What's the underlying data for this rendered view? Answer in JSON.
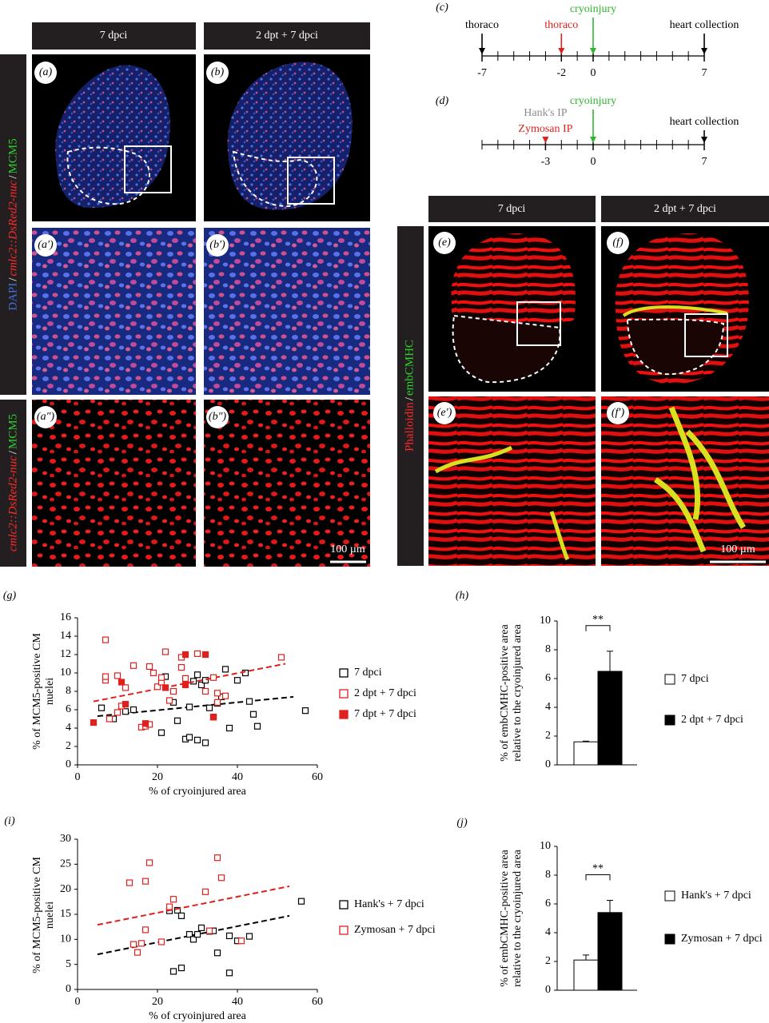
{
  "panel_labels": [
    "(a)",
    "(b)",
    "(a′)",
    "(b′)",
    "(a″)",
    "(b″)",
    "(e)",
    "(f)",
    "(e′)",
    "(f′)",
    "(c)",
    "(d)",
    "(g)",
    "(h)",
    "(i)",
    "(j)"
  ],
  "column_headers_left": [
    "7 dpci",
    "2 dpt + 7 dpci"
  ],
  "column_headers_right": [
    "7 dpci",
    "2 dpt + 7 dpci"
  ],
  "stain_labels": [
    {
      "parts": [
        {
          "text": "DAPI",
          "color": "#3d6fe0",
          "italic": false
        },
        {
          "text": "/",
          "color": "#ffffff",
          "italic": false
        },
        {
          "text": "cmlc2::DsRed2-nuc",
          "color": "#ff2a2a",
          "italic": true
        },
        {
          "text": "/",
          "color": "#ffffff",
          "italic": false
        },
        {
          "text": "MCM5",
          "color": "#2fd12f",
          "italic": false
        }
      ]
    },
    {
      "parts": [
        {
          "text": "cmlc2::DsRed2-nuc",
          "color": "#ff2a2a",
          "italic": true
        },
        {
          "text": "/",
          "color": "#ffffff",
          "italic": false
        },
        {
          "text": "MCM5",
          "color": "#2fd12f",
          "italic": false
        }
      ]
    },
    {
      "parts": [
        {
          "text": "Phalloidin",
          "color": "#ff2a2a",
          "italic": false
        },
        {
          "text": "/",
          "color": "#ffffff",
          "italic": false
        },
        {
          "text": "embCMHC",
          "color": "#2fd12f",
          "italic": false
        }
      ]
    }
  ],
  "scale_bars": [
    "100 µm",
    "100 µm"
  ],
  "timelines": [
    {
      "day_range": [
        -7,
        7
      ],
      "day_labels": [
        -7,
        -2,
        0,
        7
      ],
      "events": [
        {
          "label": "thoraco",
          "day": -7,
          "color": "#000000"
        },
        {
          "label": "thoraco",
          "day": -2,
          "color": "#e0201c"
        },
        {
          "label": "cryoinjury",
          "day": 0,
          "color": "#2fb52f"
        },
        {
          "label": "heart collection",
          "day": 7,
          "color": "#000000"
        }
      ]
    },
    {
      "day_range": [
        -7,
        7
      ],
      "day_labels": [
        -3,
        0,
        7
      ],
      "events": [
        {
          "label": "Hank's IP",
          "day": -3,
          "color": "#8c8c8c"
        },
        {
          "label": "Zymosan IP",
          "day": -3,
          "color": "#e0201c"
        },
        {
          "label": "cryoinjury",
          "day": 0,
          "color": "#2fb52f"
        },
        {
          "label": "heart collection",
          "day": 7,
          "color": "#000000"
        }
      ]
    }
  ],
  "chart_data": [
    {
      "type": "scatter",
      "xlabel": "% of cryoinjured area",
      "ylabel": "% of MCM5-positive CM nuelei",
      "xlim": [
        0,
        60
      ],
      "xticks": [
        0,
        20,
        40,
        60
      ],
      "ylim": [
        0,
        16
      ],
      "yticks": [
        0,
        2,
        4,
        6,
        8,
        10,
        12,
        14,
        16
      ],
      "series": [
        {
          "name": "7 dpci",
          "color": "#000000",
          "filled": false,
          "x": [
            6,
            9,
            12,
            14,
            21,
            22,
            24,
            25,
            27,
            28,
            28,
            29,
            30,
            30,
            31,
            32,
            32,
            33,
            34,
            35,
            36,
            37,
            38,
            40,
            42,
            43,
            44,
            45,
            57
          ],
          "values": [
            6.2,
            5,
            5.8,
            6,
            3.5,
            9.6,
            6.8,
            4.8,
            2.8,
            3,
            6.3,
            9.1,
            2.7,
            9.8,
            8.7,
            2.4,
            9.2,
            6.2,
            5.2,
            6.7,
            7.4,
            10.4,
            4,
            9.2,
            10,
            6.9,
            5.5,
            4.2,
            5.9
          ],
          "trendline": {
            "x": [
              5,
              54
            ],
            "values": [
              5.3,
              7.4
            ]
          }
        },
        {
          "name": "2 dpt + 7 dpci",
          "color": "#e0201c",
          "filled": false,
          "x": [
            7,
            7,
            7,
            8,
            10,
            10,
            11,
            12,
            14,
            16,
            17,
            18,
            18,
            19,
            20,
            21,
            21,
            22,
            23,
            24,
            26,
            26,
            27,
            30,
            32,
            34,
            35,
            35,
            37,
            51
          ],
          "values": [
            9.2,
            9.6,
            13.6,
            5,
            5.7,
            9.7,
            6.4,
            8.4,
            10.8,
            4.1,
            4.2,
            4.4,
            10.7,
            10,
            8.5,
            9,
            9.5,
            12.3,
            7,
            8,
            11.7,
            10.6,
            9.4,
            12.1,
            8,
            9.5,
            6.8,
            7.8,
            7.5,
            11.7
          ],
          "trendline": {
            "x": [
              4,
              52
            ],
            "values": [
              6.9,
              11
            ]
          }
        },
        {
          "name": "7 dpt + 7 dpci",
          "color": "#e0201c",
          "filled": true,
          "x": [
            4,
            11,
            12,
            17,
            22,
            27,
            27,
            32,
            34
          ],
          "values": [
            4.6,
            9,
            6.6,
            4.5,
            8.4,
            12,
            8.7,
            12,
            5.2
          ]
        }
      ]
    },
    {
      "type": "bar",
      "ylabel": "% of embCMHC-positive area relative to the cryoinjured area",
      "ylim": [
        0,
        10
      ],
      "yticks": [
        0,
        2,
        4,
        6,
        8,
        10
      ],
      "categories": [
        "7 dpci",
        "2 dpt + 7 dpci"
      ],
      "values": [
        1.6,
        6.5
      ],
      "errors": [
        0.05,
        1.4
      ],
      "colors": [
        "#ffffff",
        "#000000"
      ],
      "annotation": "**"
    },
    {
      "type": "scatter",
      "xlabel": "% of cryoinjured area",
      "ylabel": "% of MCM5-positive CM nuelei",
      "xlim": [
        0,
        60
      ],
      "xticks": [
        0,
        20,
        40,
        60
      ],
      "ylim": [
        0,
        30
      ],
      "yticks": [
        0,
        5,
        10,
        15,
        20,
        25,
        30
      ],
      "series": [
        {
          "name": "Hank's + 7 dpci",
          "color": "#000000",
          "filled": false,
          "x": [
            23,
            24,
            25,
            26,
            26,
            28,
            29,
            30,
            31,
            33,
            34,
            35,
            38,
            38,
            40,
            43,
            56
          ],
          "values": [
            15.7,
            3.6,
            15.8,
            4.3,
            14.7,
            11,
            10,
            11,
            12.3,
            11.6,
            11.7,
            7.3,
            3.3,
            10.7,
            9.7,
            10.6,
            17.6
          ],
          "trendline": {
            "x": [
              5,
              53
            ],
            "values": [
              7,
              14.7
            ]
          }
        },
        {
          "name": "Zymosan + 7 dpci",
          "color": "#e0201c",
          "filled": false,
          "x": [
            13,
            14,
            15,
            16,
            17,
            17,
            18,
            21,
            23,
            24,
            32,
            33,
            35,
            36,
            41
          ],
          "values": [
            21.3,
            9,
            7.4,
            9.2,
            11.9,
            21.6,
            25.3,
            9.5,
            16.5,
            18,
            19.5,
            11.7,
            26.3,
            22.3,
            9.7
          ],
          "trendline": {
            "x": [
              5,
              53
            ],
            "values": [
              12.9,
              20.6
            ]
          }
        }
      ]
    },
    {
      "type": "bar",
      "ylabel": "% of embCMHC-positive area relative to the cryoinjured area",
      "ylim": [
        0,
        10
      ],
      "yticks": [
        0,
        2,
        4,
        6,
        8,
        10
      ],
      "categories": [
        "Hank's + 7 dpci",
        "Zymosan + 7 dpci"
      ],
      "values": [
        2.1,
        5.4
      ],
      "errors": [
        0.35,
        0.85
      ],
      "colors": [
        "#ffffff",
        "#000000"
      ],
      "annotation": "**"
    }
  ]
}
